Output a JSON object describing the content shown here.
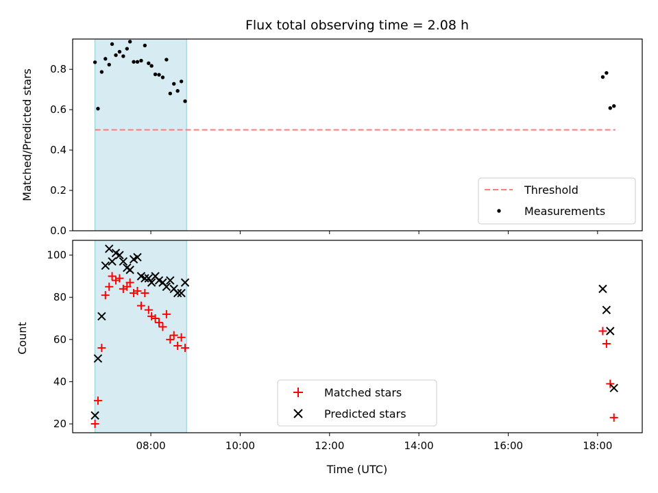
{
  "title": "Flux total observing time = 2.08 h",
  "chart_data": [
    {
      "type": "scatter",
      "ylabel": "Matched/Predicted stars",
      "xlabel": "",
      "xlim": [
        "06:15",
        "19:00"
      ],
      "ylim": [
        0,
        0.95
      ],
      "yticks": [
        "0.0",
        "0.2",
        "0.4",
        "0.6",
        "0.8"
      ],
      "shaded_span": [
        "06:45",
        "08:48"
      ],
      "legend": {
        "placement": "lower right",
        "entries": [
          "Threshold",
          "Measurements"
        ]
      },
      "threshold": {
        "name": "Threshold",
        "y": 0.5,
        "x": [
          "06:45",
          "18:24"
        ],
        "color": "#ff7b7b"
      },
      "series": [
        {
          "name": "Measurements",
          "marker": "dot",
          "color": "#000000",
          "points": [
            [
              "06:45",
              0.835
            ],
            [
              "06:49",
              0.605
            ],
            [
              "06:54",
              0.787
            ],
            [
              "06:59",
              0.852
            ],
            [
              "07:04",
              0.823
            ],
            [
              "07:08",
              0.925
            ],
            [
              "07:13",
              0.87
            ],
            [
              "07:18",
              0.887
            ],
            [
              "07:23",
              0.865
            ],
            [
              "07:28",
              0.902
            ],
            [
              "07:32",
              0.937
            ],
            [
              "07:37",
              0.837
            ],
            [
              "07:42",
              0.837
            ],
            [
              "07:47",
              0.843
            ],
            [
              "07:52",
              0.918
            ],
            [
              "07:57",
              0.83
            ],
            [
              "08:01",
              0.817
            ],
            [
              "08:06",
              0.775
            ],
            [
              "08:11",
              0.773
            ],
            [
              "08:16",
              0.76
            ],
            [
              "08:21",
              0.848
            ],
            [
              "08:26",
              0.68
            ],
            [
              "08:31",
              0.728
            ],
            [
              "08:36",
              0.693
            ],
            [
              "08:41",
              0.74
            ],
            [
              "08:46",
              0.642
            ],
            [
              "18:07",
              0.762
            ],
            [
              "18:12",
              0.782
            ],
            [
              "18:17",
              0.608
            ],
            [
              "18:22",
              0.618
            ]
          ]
        }
      ]
    },
    {
      "type": "scatter",
      "ylabel": "Count",
      "xlabel": "Time (UTC)",
      "xlim": [
        "06:15",
        "19:00"
      ],
      "ylim": [
        15.8,
        107
      ],
      "yticks": [
        "20",
        "40",
        "60",
        "80",
        "100"
      ],
      "xticks": [
        "08:00",
        "10:00",
        "12:00",
        "14:00",
        "16:00",
        "18:00"
      ],
      "shaded_span": [
        "06:45",
        "08:48"
      ],
      "legend": {
        "placement": "lower center",
        "entries": [
          "Matched stars",
          "Predicted stars"
        ]
      },
      "series": [
        {
          "name": "Matched stars",
          "marker": "plus",
          "color": "#ff0000",
          "points": [
            [
              "06:45",
              20
            ],
            [
              "06:49",
              31
            ],
            [
              "06:54",
              56
            ],
            [
              "06:59",
              81
            ],
            [
              "07:04",
              85
            ],
            [
              "07:08",
              90
            ],
            [
              "07:13",
              88
            ],
            [
              "07:18",
              89
            ],
            [
              "07:23",
              84
            ],
            [
              "07:28",
              85
            ],
            [
              "07:32",
              87
            ],
            [
              "07:37",
              82
            ],
            [
              "07:42",
              83
            ],
            [
              "07:47",
              76
            ],
            [
              "07:52",
              82
            ],
            [
              "07:57",
              74
            ],
            [
              "08:01",
              71
            ],
            [
              "08:06",
              70
            ],
            [
              "08:11",
              68
            ],
            [
              "08:16",
              66
            ],
            [
              "08:21",
              72
            ],
            [
              "08:26",
              60
            ],
            [
              "08:31",
              62
            ],
            [
              "08:36",
              57
            ],
            [
              "08:41",
              61
            ],
            [
              "08:46",
              56
            ],
            [
              "18:07",
              64
            ],
            [
              "18:12",
              58
            ],
            [
              "18:17",
              39
            ],
            [
              "18:22",
              23
            ]
          ]
        },
        {
          "name": "Predicted stars",
          "marker": "x",
          "color": "#000000",
          "points": [
            [
              "06:45",
              24
            ],
            [
              "06:49",
              51
            ],
            [
              "06:54",
              71
            ],
            [
              "06:59",
              95
            ],
            [
              "07:04",
              103
            ],
            [
              "07:08",
              97
            ],
            [
              "07:13",
              101
            ],
            [
              "07:18",
              100
            ],
            [
              "07:23",
              97
            ],
            [
              "07:28",
              94
            ],
            [
              "07:32",
              93
            ],
            [
              "07:37",
              98
            ],
            [
              "07:42",
              99
            ],
            [
              "07:47",
              90
            ],
            [
              "07:52",
              89
            ],
            [
              "07:57",
              89
            ],
            [
              "08:01",
              87
            ],
            [
              "08:06",
              90
            ],
            [
              "08:11",
              88
            ],
            [
              "08:16",
              87
            ],
            [
              "08:21",
              85
            ],
            [
              "08:26",
              88
            ],
            [
              "08:31",
              84
            ],
            [
              "08:36",
              82
            ],
            [
              "08:41",
              82
            ],
            [
              "08:46",
              87
            ],
            [
              "18:07",
              84
            ],
            [
              "18:12",
              74
            ],
            [
              "18:17",
              64
            ],
            [
              "18:22",
              37
            ]
          ]
        }
      ]
    }
  ]
}
